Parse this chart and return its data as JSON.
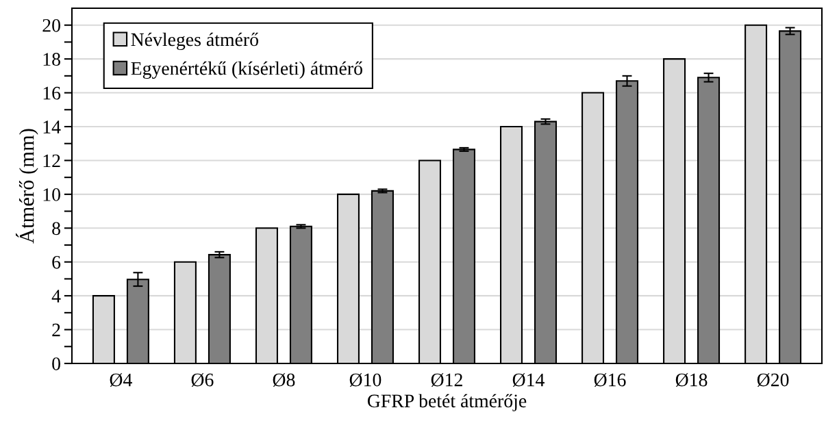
{
  "chart_data": {
    "type": "bar",
    "xlabel": "GFRP betét átmérője",
    "ylabel": "Átmérő (mm)",
    "categories": [
      "Ø4",
      "Ø6",
      "Ø8",
      "Ø10",
      "Ø12",
      "Ø14",
      "Ø16",
      "Ø18",
      "Ø20"
    ],
    "series": [
      {
        "name": "Névleges átmérő",
        "color": "#d9d9d9",
        "values": [
          4,
          6,
          8,
          10,
          12,
          14,
          16,
          18,
          20
        ]
      },
      {
        "name": "Egyenértékű (kísérleti) átmérő",
        "color": "#808080",
        "values": [
          4.97,
          6.43,
          8.1,
          10.2,
          12.65,
          14.3,
          16.7,
          16.9,
          19.65
        ],
        "errors": [
          0.4,
          0.17,
          0.1,
          0.1,
          0.1,
          0.15,
          0.3,
          0.25,
          0.2
        ]
      }
    ],
    "ylim": [
      0,
      21
    ],
    "yticks": [
      0,
      2,
      4,
      6,
      8,
      10,
      12,
      14,
      16,
      18,
      20
    ],
    "grid": "y",
    "legend": "top left"
  }
}
